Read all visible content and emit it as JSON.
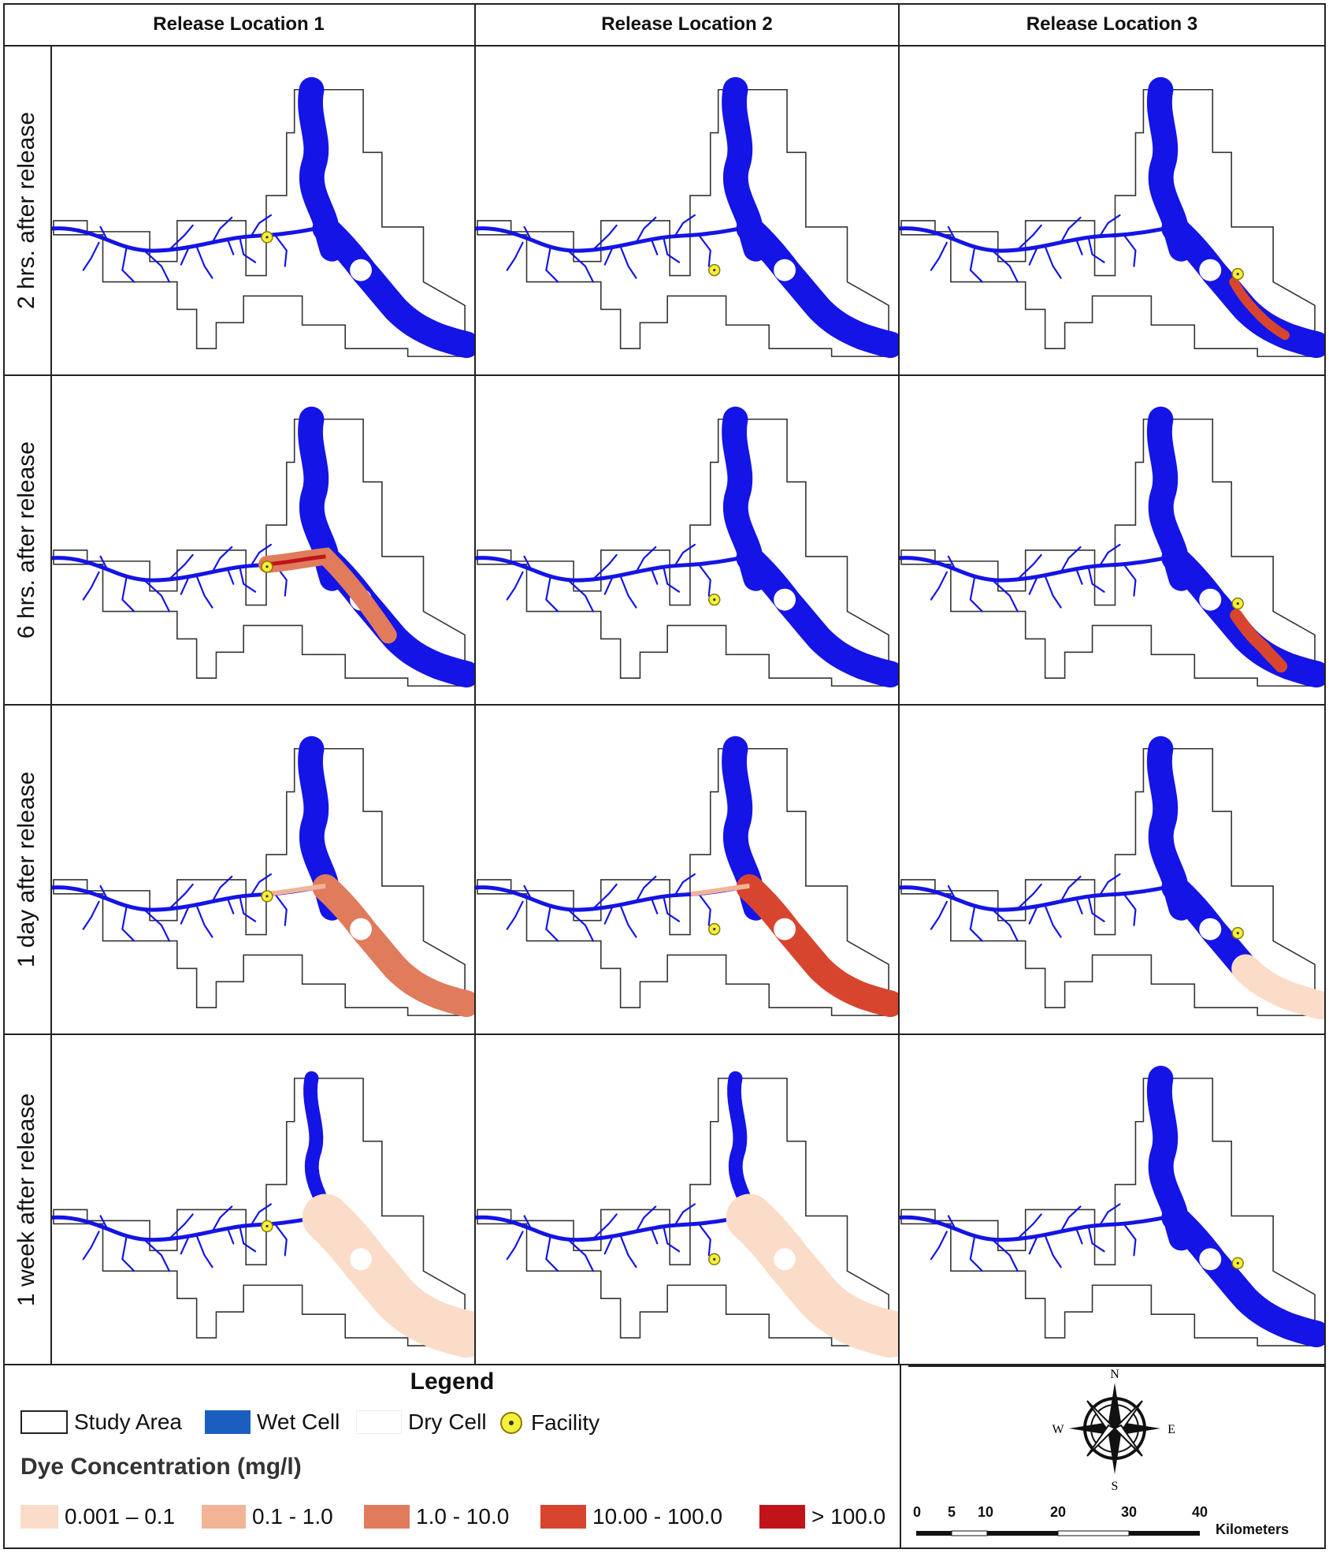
{
  "columns": [
    "Release Location 1",
    "Release Location 2",
    "Release Location 3"
  ],
  "rows": [
    "2 hrs. after release",
    "6 hrs. after release",
    "1 day after release",
    "1 week after release"
  ],
  "colors": {
    "wet": "#1414e6",
    "boundary": "#333333",
    "facility": "#f5f03a",
    "dye_classes": [
      "#fbdcc8",
      "#f3b396",
      "#e07b5c",
      "#d8452e",
      "#c0141a"
    ]
  },
  "panels": [
    [
      {
        "plume": "none",
        "level": 0
      },
      {
        "plume": "none",
        "level": 0
      },
      {
        "plume": "ds_short",
        "level": 3
      }
    ],
    [
      {
        "plume": "mid",
        "level": 2
      },
      {
        "plume": "none",
        "level": 0
      },
      {
        "plume": "ds_mid",
        "level": 3
      }
    ],
    [
      {
        "plume": "full",
        "level": 2
      },
      {
        "plume": "full",
        "level": 3
      },
      {
        "plume": "ds_end",
        "level": 0
      }
    ],
    [
      {
        "plume": "diffuse",
        "level": 0
      },
      {
        "plume": "diffuse",
        "level": 0
      },
      {
        "plume": "none",
        "level": 0
      }
    ]
  ],
  "legend": {
    "title": "Legend",
    "study_area": "Study Area",
    "wet_cell": "Wet Cell",
    "dry_cell": "Dry Cell",
    "facility": "Facility",
    "dye_title": "Dye Concentration  (mg/l)",
    "dye_classes": [
      "0.001 – 0.1",
      "0.1 - 1.0",
      "1.0 - 10.0",
      "10.00 - 100.0",
      "> 100.0"
    ]
  },
  "north_arrow": {
    "n": "N",
    "s": "S",
    "e": "E",
    "w": "W"
  },
  "scale_bar": {
    "ticks": [
      "0",
      "5",
      "10",
      "20",
      "30",
      "40"
    ],
    "unit": "Kilometers"
  }
}
